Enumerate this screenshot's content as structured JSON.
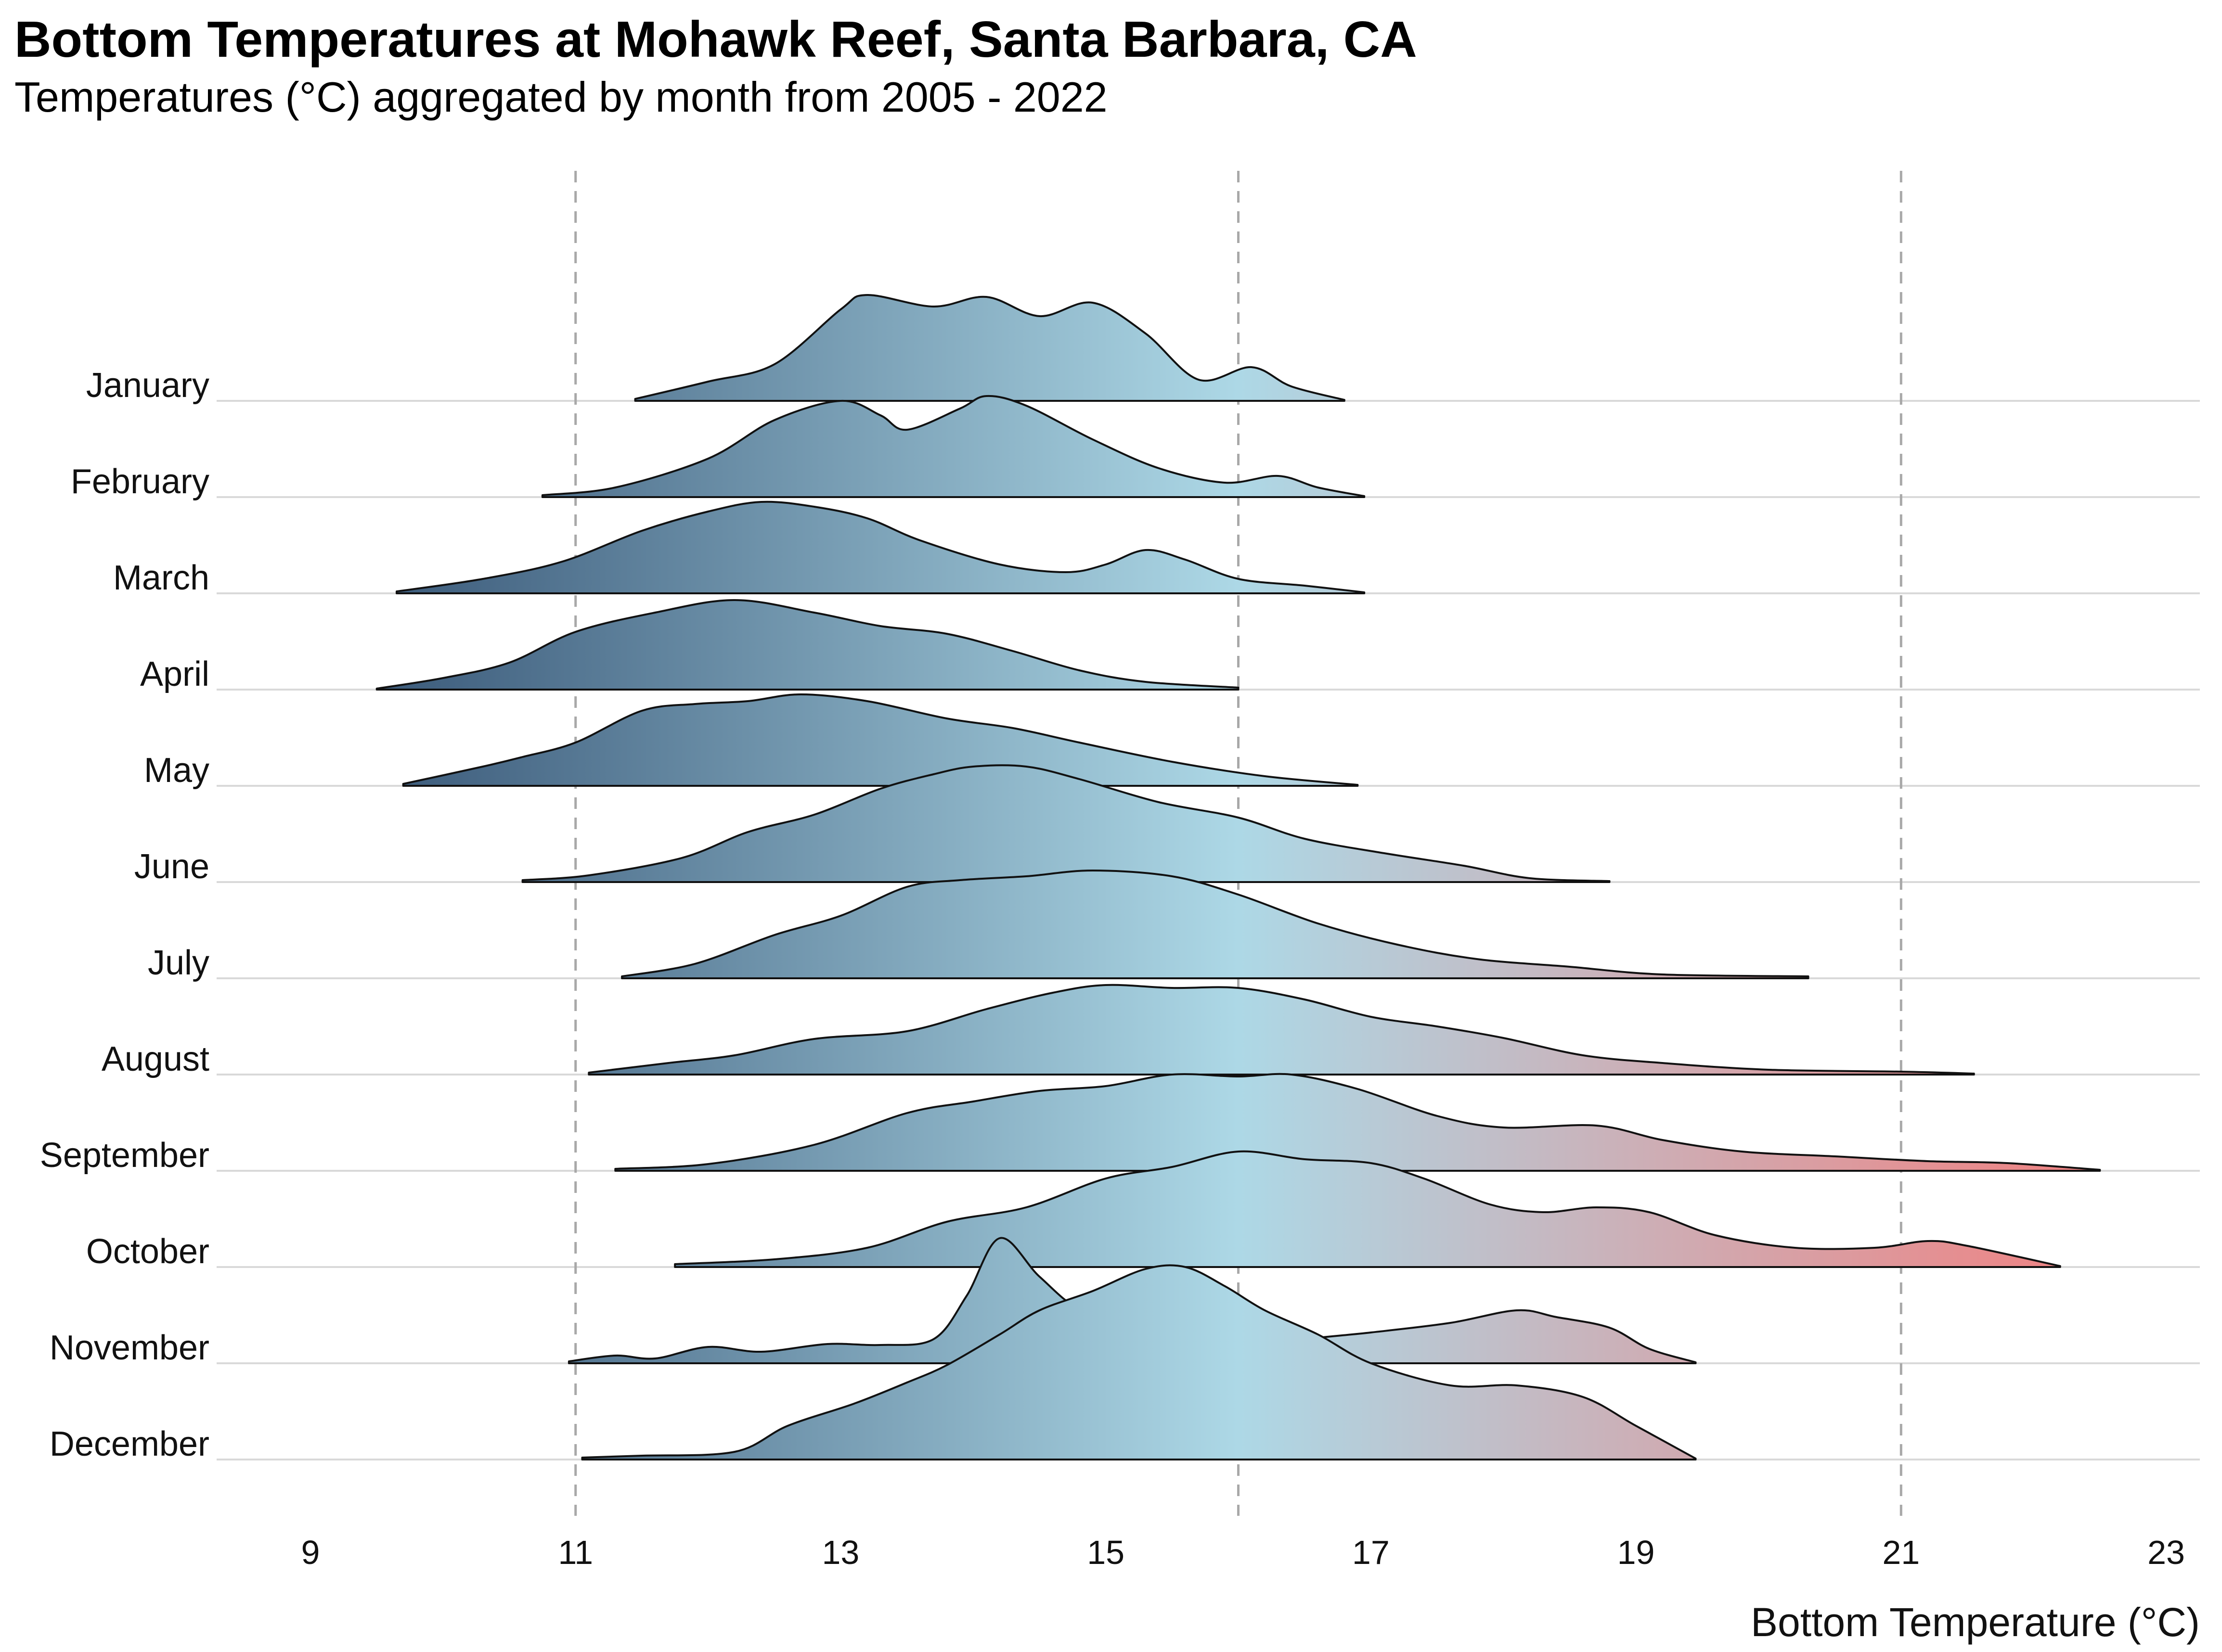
{
  "chart_data": {
    "type": "ridgeline",
    "title": "Bottom Temperatures at Mohawk Reef, Santa Barbara, CA",
    "subtitle": "Temperatures (°C) aggregated by month from 2005 - 2022",
    "xlabel": "Bottom Temperature (°C)",
    "xlim": [
      8.0,
      24.3
    ],
    "xticks": [
      9,
      11,
      13,
      15,
      17,
      19,
      21,
      23
    ],
    "reference_lines": [
      11,
      16,
      21
    ],
    "grid": false,
    "color_scale": {
      "domain": [
        9.5,
        16.0,
        22.5
      ],
      "colors": [
        "#3b5a7a",
        "#add8e6",
        "#f08080"
      ],
      "note": ""
    },
    "series": [
      {
        "name": "January",
        "points": [
          [
            11.45,
            0.02
          ],
          [
            12.0,
            0.2
          ],
          [
            12.5,
            0.38
          ],
          [
            13.0,
            0.95
          ],
          [
            13.2,
            1.1
          ],
          [
            13.7,
            0.98
          ],
          [
            14.1,
            1.08
          ],
          [
            14.5,
            0.88
          ],
          [
            14.9,
            1.02
          ],
          [
            15.3,
            0.7
          ],
          [
            15.7,
            0.22
          ],
          [
            16.1,
            0.35
          ],
          [
            16.4,
            0.15
          ],
          [
            16.8,
            0.01
          ]
        ]
      },
      {
        "name": "February",
        "points": [
          [
            10.75,
            0.02
          ],
          [
            11.3,
            0.1
          ],
          [
            12.0,
            0.4
          ],
          [
            12.5,
            0.8
          ],
          [
            13.0,
            1.0
          ],
          [
            13.3,
            0.85
          ],
          [
            13.5,
            0.7
          ],
          [
            13.9,
            0.92
          ],
          [
            14.1,
            1.05
          ],
          [
            14.4,
            0.95
          ],
          [
            14.9,
            0.6
          ],
          [
            15.4,
            0.3
          ],
          [
            15.9,
            0.15
          ],
          [
            16.3,
            0.22
          ],
          [
            16.6,
            0.1
          ],
          [
            16.95,
            0.01
          ]
        ]
      },
      {
        "name": "March",
        "points": [
          [
            9.65,
            0.02
          ],
          [
            10.3,
            0.15
          ],
          [
            10.9,
            0.33
          ],
          [
            11.5,
            0.65
          ],
          [
            12.0,
            0.85
          ],
          [
            12.4,
            0.95
          ],
          [
            12.8,
            0.9
          ],
          [
            13.2,
            0.78
          ],
          [
            13.6,
            0.55
          ],
          [
            14.2,
            0.3
          ],
          [
            14.7,
            0.22
          ],
          [
            15.0,
            0.3
          ],
          [
            15.3,
            0.45
          ],
          [
            15.6,
            0.35
          ],
          [
            16.0,
            0.15
          ],
          [
            16.5,
            0.08
          ],
          [
            16.95,
            0.01
          ]
        ]
      },
      {
        "name": "April",
        "points": [
          [
            9.5,
            0.01
          ],
          [
            10.0,
            0.12
          ],
          [
            10.5,
            0.28
          ],
          [
            11.0,
            0.6
          ],
          [
            11.6,
            0.8
          ],
          [
            12.2,
            0.93
          ],
          [
            12.8,
            0.8
          ],
          [
            13.3,
            0.66
          ],
          [
            13.8,
            0.58
          ],
          [
            14.3,
            0.4
          ],
          [
            14.8,
            0.2
          ],
          [
            15.3,
            0.08
          ],
          [
            16.0,
            0.02
          ]
        ]
      },
      {
        "name": "May",
        "points": [
          [
            9.7,
            0.02
          ],
          [
            10.3,
            0.2
          ],
          [
            10.6,
            0.3
          ],
          [
            11.0,
            0.45
          ],
          [
            11.5,
            0.78
          ],
          [
            11.9,
            0.85
          ],
          [
            12.3,
            0.88
          ],
          [
            12.7,
            0.95
          ],
          [
            13.2,
            0.88
          ],
          [
            13.8,
            0.7
          ],
          [
            14.3,
            0.6
          ],
          [
            14.8,
            0.45
          ],
          [
            15.5,
            0.25
          ],
          [
            16.2,
            0.1
          ],
          [
            16.9,
            0.01
          ]
        ]
      },
      {
        "name": "June",
        "points": [
          [
            10.6,
            0.02
          ],
          [
            11.1,
            0.07
          ],
          [
            11.8,
            0.25
          ],
          [
            12.3,
            0.52
          ],
          [
            12.8,
            0.7
          ],
          [
            13.3,
            0.97
          ],
          [
            13.7,
            1.12
          ],
          [
            14.0,
            1.2
          ],
          [
            14.4,
            1.2
          ],
          [
            14.8,
            1.07
          ],
          [
            15.4,
            0.83
          ],
          [
            16.0,
            0.67
          ],
          [
            16.5,
            0.45
          ],
          [
            17.1,
            0.3
          ],
          [
            17.7,
            0.17
          ],
          [
            18.2,
            0.04
          ],
          [
            18.8,
            0.01
          ]
        ]
      },
      {
        "name": "July",
        "points": [
          [
            11.35,
            0.02
          ],
          [
            11.9,
            0.15
          ],
          [
            12.5,
            0.45
          ],
          [
            13.0,
            0.65
          ],
          [
            13.5,
            0.95
          ],
          [
            13.9,
            1.02
          ],
          [
            14.4,
            1.06
          ],
          [
            14.9,
            1.12
          ],
          [
            15.5,
            1.06
          ],
          [
            16.0,
            0.87
          ],
          [
            16.6,
            0.57
          ],
          [
            17.2,
            0.35
          ],
          [
            17.8,
            0.2
          ],
          [
            18.5,
            0.12
          ],
          [
            19.2,
            0.04
          ],
          [
            20.3,
            0.02
          ]
        ]
      },
      {
        "name": "August",
        "points": [
          [
            11.1,
            0.02
          ],
          [
            11.7,
            0.12
          ],
          [
            12.2,
            0.2
          ],
          [
            12.8,
            0.37
          ],
          [
            13.5,
            0.45
          ],
          [
            14.1,
            0.68
          ],
          [
            14.6,
            0.85
          ],
          [
            15.0,
            0.93
          ],
          [
            15.5,
            0.9
          ],
          [
            16.0,
            0.9
          ],
          [
            16.5,
            0.78
          ],
          [
            17.0,
            0.6
          ],
          [
            17.5,
            0.5
          ],
          [
            18.0,
            0.38
          ],
          [
            18.6,
            0.2
          ],
          [
            19.2,
            0.12
          ],
          [
            20.0,
            0.05
          ],
          [
            21.0,
            0.03
          ],
          [
            21.55,
            0.01
          ]
        ]
      },
      {
        "name": "September",
        "points": [
          [
            11.3,
            0.02
          ],
          [
            12.0,
            0.07
          ],
          [
            12.8,
            0.27
          ],
          [
            13.5,
            0.6
          ],
          [
            14.0,
            0.72
          ],
          [
            14.5,
            0.83
          ],
          [
            15.0,
            0.88
          ],
          [
            15.5,
            1.0
          ],
          [
            16.0,
            0.98
          ],
          [
            16.4,
            1.0
          ],
          [
            16.9,
            0.85
          ],
          [
            17.5,
            0.57
          ],
          [
            18.0,
            0.45
          ],
          [
            18.7,
            0.47
          ],
          [
            19.2,
            0.32
          ],
          [
            19.8,
            0.2
          ],
          [
            20.5,
            0.15
          ],
          [
            21.2,
            0.1
          ],
          [
            21.8,
            0.08
          ],
          [
            22.5,
            0.01
          ]
        ]
      },
      {
        "name": "October",
        "points": [
          [
            11.75,
            0.03
          ],
          [
            12.5,
            0.08
          ],
          [
            13.2,
            0.2
          ],
          [
            13.8,
            0.47
          ],
          [
            14.4,
            0.62
          ],
          [
            15.0,
            0.92
          ],
          [
            15.5,
            1.04
          ],
          [
            16.0,
            1.2
          ],
          [
            16.5,
            1.12
          ],
          [
            17.0,
            1.08
          ],
          [
            17.4,
            0.92
          ],
          [
            17.9,
            0.65
          ],
          [
            18.3,
            0.57
          ],
          [
            18.7,
            0.62
          ],
          [
            19.1,
            0.57
          ],
          [
            19.6,
            0.33
          ],
          [
            20.2,
            0.2
          ],
          [
            20.8,
            0.2
          ],
          [
            21.2,
            0.27
          ],
          [
            21.5,
            0.22
          ],
          [
            22.2,
            0.01
          ]
        ]
      },
      {
        "name": "November",
        "points": [
          [
            10.95,
            0.02
          ],
          [
            11.3,
            0.08
          ],
          [
            11.6,
            0.05
          ],
          [
            12.0,
            0.17
          ],
          [
            12.4,
            0.12
          ],
          [
            12.9,
            0.2
          ],
          [
            13.3,
            0.19
          ],
          [
            13.7,
            0.25
          ],
          [
            13.95,
            0.7
          ],
          [
            14.2,
            1.3
          ],
          [
            14.5,
            0.9
          ],
          [
            14.8,
            0.57
          ],
          [
            15.1,
            0.6
          ],
          [
            15.5,
            0.53
          ],
          [
            15.7,
            0.3
          ],
          [
            16.0,
            0.15
          ],
          [
            16.5,
            0.25
          ],
          [
            17.0,
            0.32
          ],
          [
            17.6,
            0.42
          ],
          [
            18.1,
            0.55
          ],
          [
            18.4,
            0.48
          ],
          [
            18.8,
            0.37
          ],
          [
            19.1,
            0.15
          ],
          [
            19.45,
            0.01
          ]
        ]
      },
      {
        "name": "December",
        "points": [
          [
            11.05,
            0.02
          ],
          [
            11.5,
            0.04
          ],
          [
            12.2,
            0.08
          ],
          [
            12.6,
            0.35
          ],
          [
            13.1,
            0.58
          ],
          [
            13.5,
            0.8
          ],
          [
            13.8,
            0.98
          ],
          [
            14.2,
            1.3
          ],
          [
            14.5,
            1.55
          ],
          [
            14.9,
            1.75
          ],
          [
            15.3,
            1.98
          ],
          [
            15.6,
            2.0
          ],
          [
            15.9,
            1.8
          ],
          [
            16.2,
            1.55
          ],
          [
            16.6,
            1.3
          ],
          [
            17.0,
            1.0
          ],
          [
            17.6,
            0.77
          ],
          [
            18.1,
            0.77
          ],
          [
            18.6,
            0.65
          ],
          [
            19.0,
            0.35
          ],
          [
            19.45,
            0.01
          ]
        ]
      }
    ]
  }
}
